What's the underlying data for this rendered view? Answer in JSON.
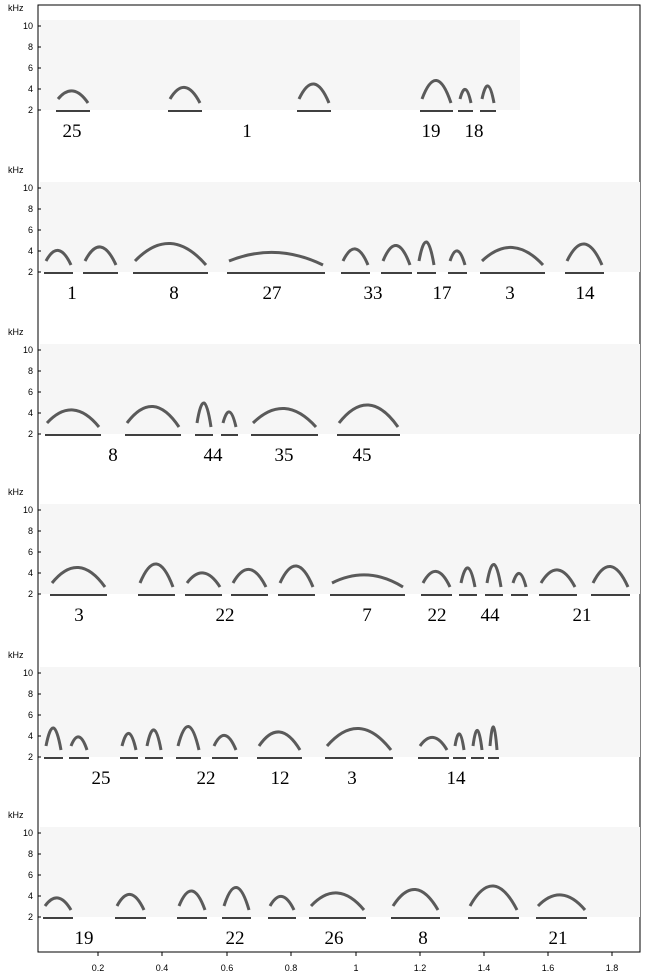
{
  "y_axis": {
    "unit": "kHz",
    "ticks": [
      "10",
      "8",
      "6",
      "4",
      "2"
    ]
  },
  "rows": [
    {
      "labels": [
        "25",
        "1",
        "19",
        "18"
      ]
    },
    {
      "labels": [
        "1",
        "8",
        "27",
        "33",
        "17",
        "3",
        "14"
      ]
    },
    {
      "labels": [
        "8",
        "44",
        "35",
        "45"
      ]
    },
    {
      "labels": [
        "3",
        "22",
        "7",
        "22",
        "44",
        "21"
      ]
    },
    {
      "labels": [
        "25",
        "22",
        "12",
        "3",
        "14"
      ]
    },
    {
      "labels": [
        "19",
        "22",
        "26",
        "8",
        "21"
      ]
    }
  ],
  "x_axis": {
    "ticks": [
      "0.2",
      "0.4",
      "0.6",
      "0.8",
      "1",
      "1.2",
      "1.4",
      "1.6",
      "1.8"
    ]
  }
}
